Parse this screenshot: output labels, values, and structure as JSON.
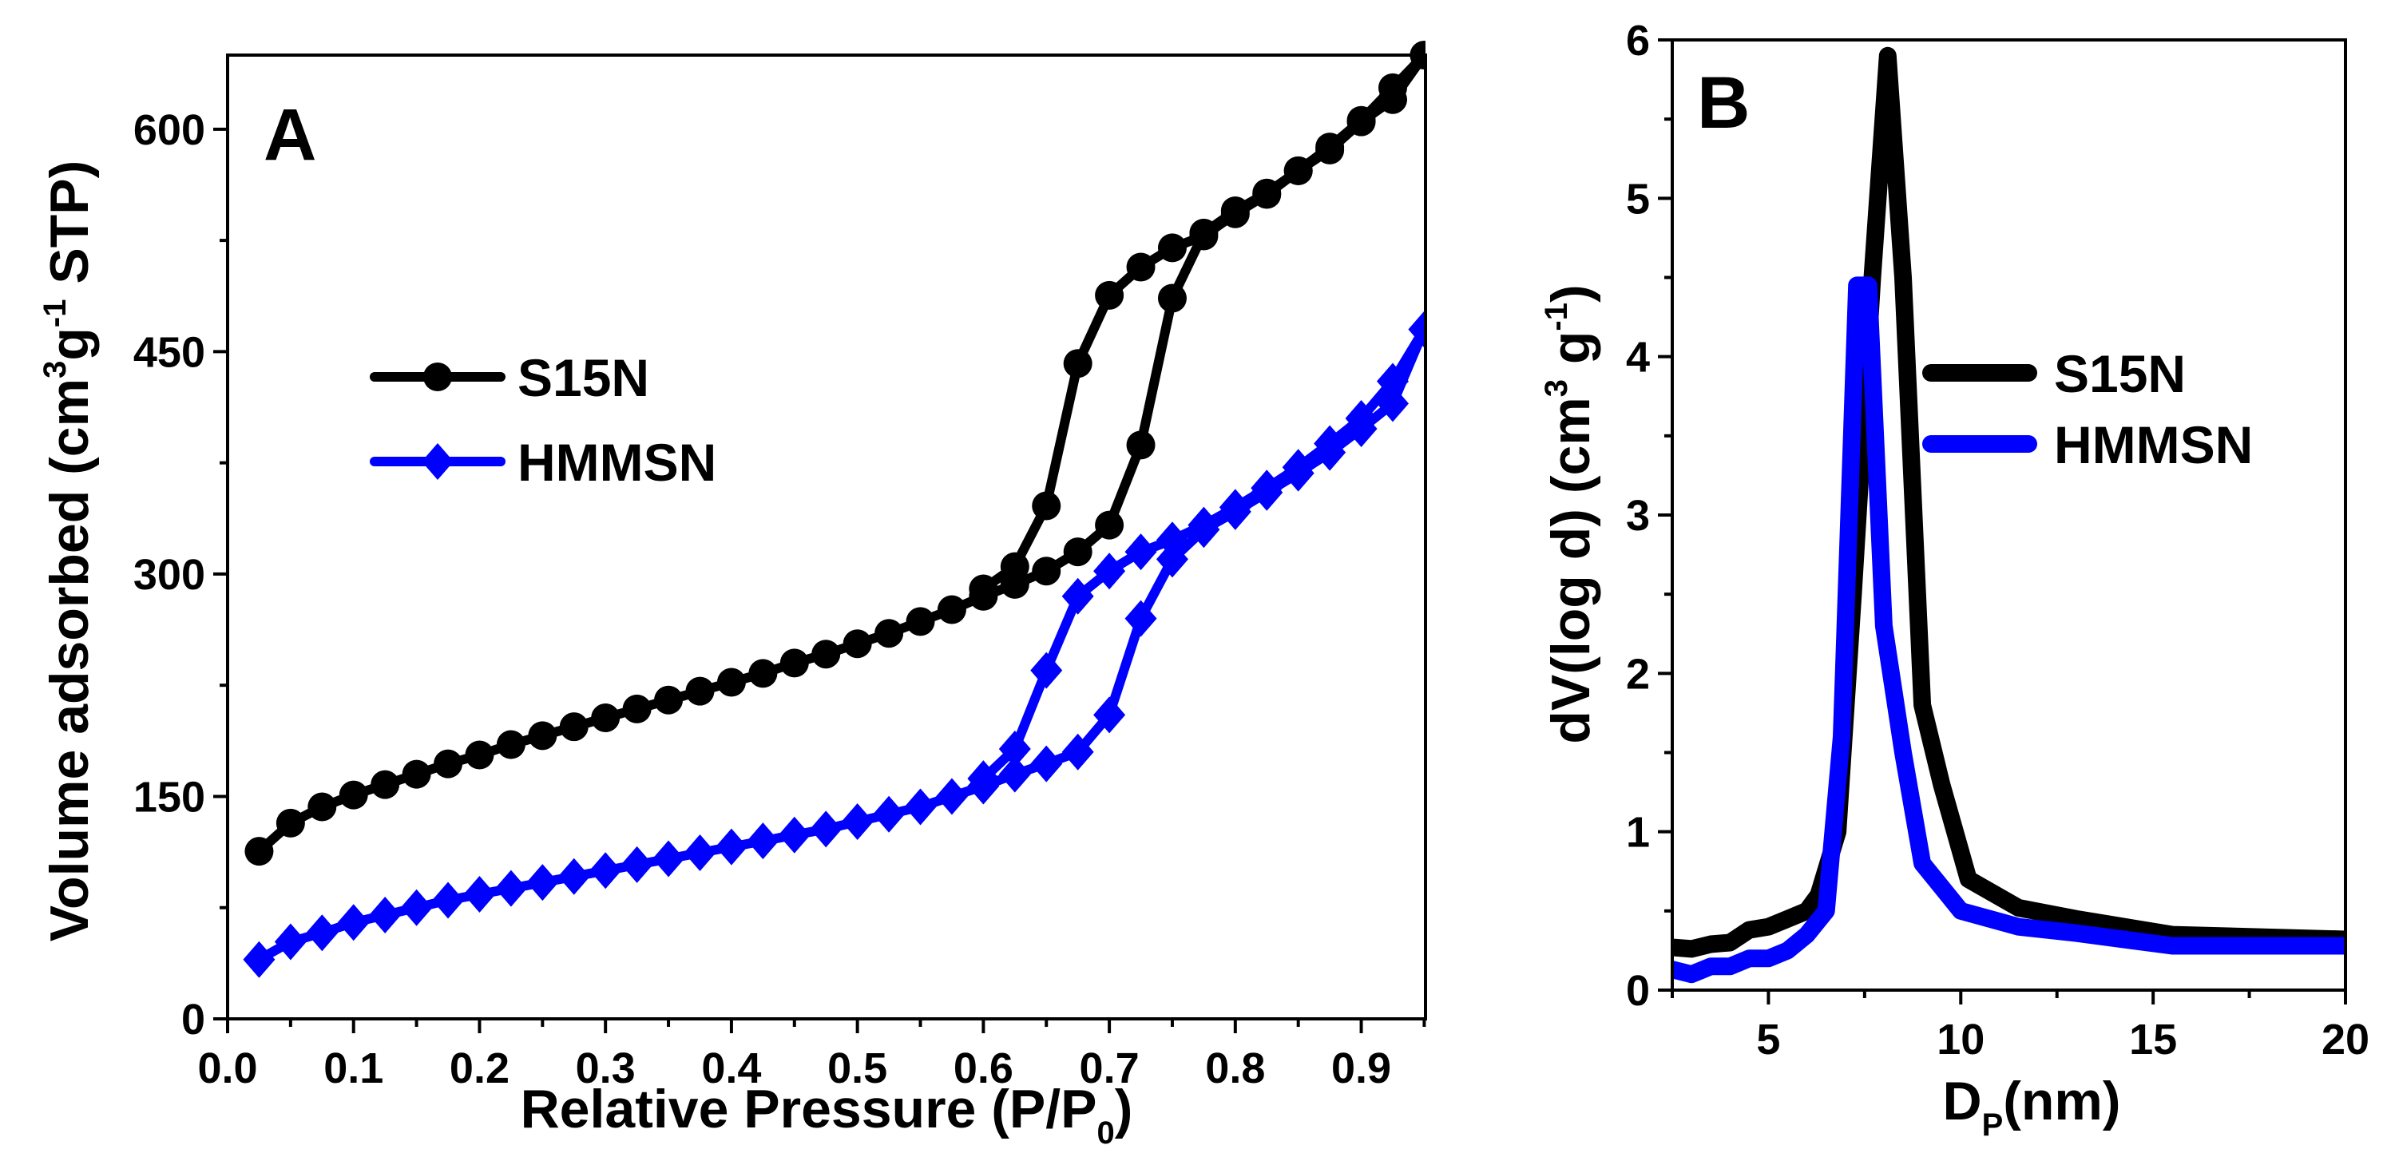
{
  "chart_data": [
    {
      "type": "line",
      "panel_label": "A",
      "xlabel": "Relative Pressure (P/P",
      "xlabel_sub": "0",
      "xlabel_end": ")",
      "ylabel_parts": [
        "Volume adsorbed (cm",
        "3",
        "g",
        "-1",
        " STP)"
      ],
      "xlim": [
        0.0,
        0.951
      ],
      "ylim": [
        0,
        650
      ],
      "xticks": [
        0.0,
        0.1,
        0.2,
        0.3,
        0.4,
        0.5,
        0.6,
        0.7,
        0.8,
        0.9
      ],
      "xtick_labels": [
        "0.0",
        "0.1",
        "0.2",
        "0.3",
        "0.4",
        "0.5",
        "0.6",
        "0.7",
        "0.8",
        "0.9"
      ],
      "yticks": [
        0,
        150,
        300,
        450,
        600
      ],
      "ytick_labels": [
        "0",
        "150",
        "300",
        "450",
        "600"
      ],
      "grid": false,
      "legend_position": "center-left",
      "series": [
        {
          "name": "S15N",
          "color": "#000000",
          "marker": "circle",
          "x": [
            0.025,
            0.05,
            0.075,
            0.1,
            0.125,
            0.15,
            0.175,
            0.2,
            0.225,
            0.25,
            0.275,
            0.3,
            0.325,
            0.35,
            0.375,
            0.4,
            0.425,
            0.45,
            0.475,
            0.5,
            0.525,
            0.55,
            0.575,
            0.6,
            0.625,
            0.65,
            0.675,
            0.7,
            0.725,
            0.75,
            0.775,
            0.8,
            0.825,
            0.85,
            0.875,
            0.9,
            0.925,
            0.95,
            0.925,
            0.9,
            0.875,
            0.85,
            0.825,
            0.8,
            0.775,
            0.75,
            0.725,
            0.7,
            0.675,
            0.65,
            0.625,
            0.6
          ],
          "y": [
            113,
            132,
            143,
            151,
            158,
            165,
            172,
            178,
            185,
            191,
            197,
            203,
            209,
            215,
            221,
            227,
            233,
            240,
            246,
            253,
            260,
            268,
            276,
            285,
            293,
            302,
            315,
            333,
            387,
            486,
            530,
            545,
            557,
            572,
            586,
            605,
            620,
            650,
            628,
            606,
            588,
            572,
            556,
            543,
            528,
            520,
            507,
            488,
            442,
            346,
            305,
            290
          ]
        },
        {
          "name": "HMMSN",
          "color": "#0000ff",
          "marker": "diamond",
          "x": [
            0.025,
            0.05,
            0.075,
            0.1,
            0.125,
            0.15,
            0.175,
            0.2,
            0.225,
            0.25,
            0.275,
            0.3,
            0.325,
            0.35,
            0.375,
            0.4,
            0.425,
            0.45,
            0.475,
            0.5,
            0.525,
            0.55,
            0.575,
            0.6,
            0.625,
            0.65,
            0.675,
            0.7,
            0.725,
            0.75,
            0.775,
            0.8,
            0.825,
            0.85,
            0.875,
            0.9,
            0.925,
            0.95,
            0.925,
            0.9,
            0.875,
            0.85,
            0.825,
            0.8,
            0.775,
            0.75,
            0.725,
            0.7,
            0.675,
            0.65,
            0.625,
            0.6
          ],
          "y": [
            40,
            52,
            58,
            65,
            70,
            75,
            80,
            84,
            88,
            92,
            96,
            100,
            104,
            108,
            112,
            116,
            120,
            124,
            128,
            133,
            138,
            143,
            150,
            157,
            165,
            172,
            180,
            205,
            270,
            310,
            330,
            342,
            355,
            368,
            382,
            398,
            415,
            465,
            430,
            405,
            388,
            372,
            358,
            345,
            333,
            323,
            315,
            302,
            285,
            235,
            182,
            162
          ]
        }
      ]
    },
    {
      "type": "line",
      "panel_label": "B",
      "xlabel": "D",
      "xlabel_sub": "P",
      "xlabel_end": "(nm)",
      "ylabel_parts": [
        "dV(log d) (cm",
        "3",
        " g",
        "-1",
        ")"
      ],
      "xlim": [
        2.5,
        20
      ],
      "ylim": [
        0,
        6
      ],
      "xticks": [
        5,
        10,
        15,
        20
      ],
      "xtick_labels": [
        "5",
        "10",
        "15",
        "20"
      ],
      "yticks": [
        0,
        1,
        2,
        3,
        4,
        5,
        6
      ],
      "ytick_labels": [
        "0",
        "1",
        "2",
        "3",
        "4",
        "5",
        "6"
      ],
      "grid": false,
      "legend_position": "center-right",
      "series": [
        {
          "name": "S15N",
          "color": "#000000",
          "x": [
            2.5,
            3,
            3.5,
            4,
            4.5,
            5,
            5.5,
            6,
            6.3,
            6.8,
            7.2,
            7.7,
            8.1,
            8.5,
            9,
            9.5,
            10.2,
            11.5,
            13,
            15.5,
            20
          ],
          "y": [
            0.27,
            0.26,
            0.29,
            0.3,
            0.38,
            0.4,
            0.45,
            0.5,
            0.6,
            1.0,
            2.5,
            4.5,
            5.9,
            4.5,
            1.8,
            1.3,
            0.7,
            0.52,
            0.45,
            0.35,
            0.32
          ]
        },
        {
          "name": "HMMSN",
          "color": "#0000ff",
          "x": [
            2.5,
            3,
            3.5,
            4,
            4.5,
            5,
            5.5,
            6,
            6.5,
            6.9,
            7.3,
            7.6,
            8,
            8.5,
            9,
            10,
            11.5,
            13,
            15.5,
            20
          ],
          "y": [
            0.13,
            0.1,
            0.15,
            0.15,
            0.2,
            0.2,
            0.25,
            0.35,
            0.5,
            1.6,
            4.45,
            4.45,
            2.3,
            1.5,
            0.8,
            0.5,
            0.4,
            0.36,
            0.28,
            0.28
          ]
        }
      ]
    }
  ]
}
